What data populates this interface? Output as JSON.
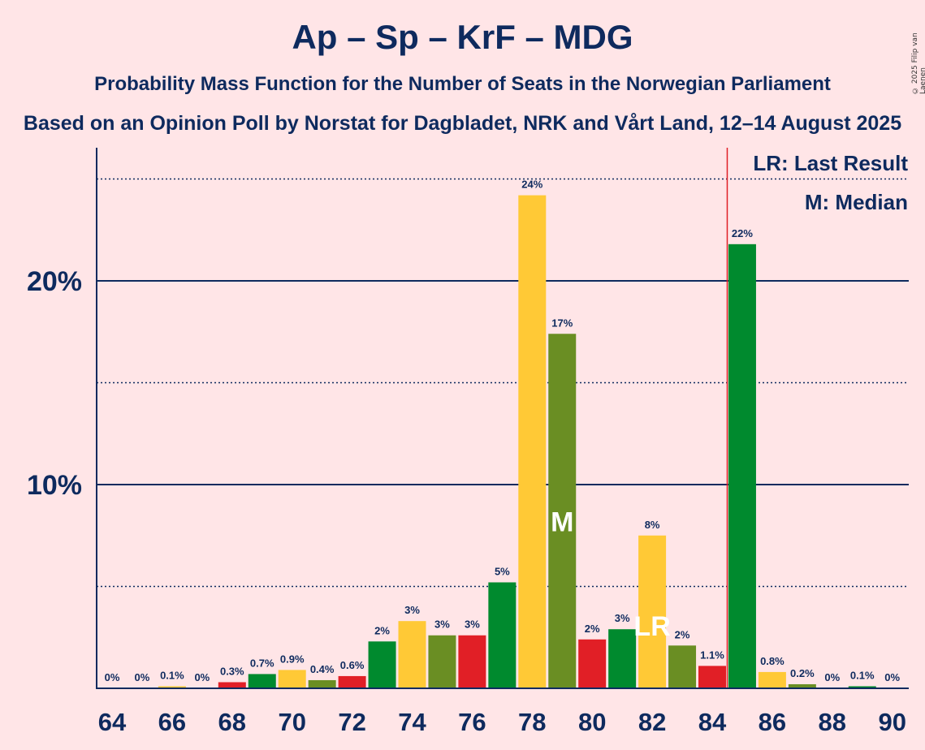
{
  "chart_data": {
    "type": "bar",
    "title": "Ap – Sp – KrF – MDG",
    "subtitle": "Probability Mass Function for the Number of Seats in the Norwegian Parliament",
    "subtitle2": "Based on an Opinion Poll by Norstat for Dagbladet, NRK and Vårt Land, 12–14 August 2025",
    "copyright": "© 2025 Filip van Laenen",
    "ylim": [
      0,
      26.5
    ],
    "y_major_ticks": [
      {
        "value": 10,
        "label": "10%"
      },
      {
        "value": 20,
        "label": "20%"
      }
    ],
    "y_minor_gridlines": [
      5,
      15,
      25
    ],
    "x_tick_labels": [
      64,
      66,
      68,
      70,
      72,
      74,
      76,
      78,
      80,
      82,
      84,
      86,
      88,
      90
    ],
    "bars": [
      {
        "seats": 64,
        "value": 0.0,
        "label": "0%",
        "color": "#FFC936"
      },
      {
        "seats": 65,
        "value": 0.0,
        "label": "0%",
        "color": "#FFC936"
      },
      {
        "seats": 66,
        "value": 0.1,
        "label": "0.1%",
        "color": "#FFC936"
      },
      {
        "seats": 67,
        "value": 0.0,
        "label": "0%",
        "color": "#FFC936"
      },
      {
        "seats": 68,
        "value": 0.3,
        "label": "0.3%",
        "color": "#E11F26"
      },
      {
        "seats": 69,
        "value": 0.7,
        "label": "0.7%",
        "color": "#008A2E"
      },
      {
        "seats": 70,
        "value": 0.9,
        "label": "0.9%",
        "color": "#FFC936"
      },
      {
        "seats": 71,
        "value": 0.4,
        "label": "0.4%",
        "color": "#6A8E23"
      },
      {
        "seats": 72,
        "value": 0.6,
        "label": "0.6%",
        "color": "#E11F26"
      },
      {
        "seats": 73,
        "value": 2.3,
        "label": "2%",
        "color": "#008A2E"
      },
      {
        "seats": 74,
        "value": 3.3,
        "label": "3%",
        "color": "#FFC936"
      },
      {
        "seats": 75,
        "value": 2.6,
        "label": "3%",
        "color": "#6A8E23"
      },
      {
        "seats": 76,
        "value": 2.6,
        "label": "3%",
        "color": "#E11F26"
      },
      {
        "seats": 77,
        "value": 5.2,
        "label": "5%",
        "color": "#008A2E"
      },
      {
        "seats": 78,
        "value": 24.2,
        "label": "24%",
        "color": "#FFC936"
      },
      {
        "seats": 79,
        "value": 17.4,
        "label": "17%",
        "color": "#6A8E23"
      },
      {
        "seats": 80,
        "value": 2.4,
        "label": "2%",
        "color": "#E11F26"
      },
      {
        "seats": 81,
        "value": 2.9,
        "label": "3%",
        "color": "#008A2E"
      },
      {
        "seats": 82,
        "value": 7.5,
        "label": "8%",
        "color": "#FFC936"
      },
      {
        "seats": 83,
        "value": 2.1,
        "label": "2%",
        "color": "#6A8E23"
      },
      {
        "seats": 84,
        "value": 1.1,
        "label": "1.1%",
        "color": "#E11F26"
      },
      {
        "seats": 85,
        "value": 21.8,
        "label": "22%",
        "color": "#008A2E"
      },
      {
        "seats": 86,
        "value": 0.8,
        "label": "0.8%",
        "color": "#FFC936"
      },
      {
        "seats": 87,
        "value": 0.2,
        "label": "0.2%",
        "color": "#6A8E23"
      },
      {
        "seats": 88,
        "value": 0.0,
        "label": "0%",
        "color": "#E11F26"
      },
      {
        "seats": 89,
        "value": 0.1,
        "label": "0.1%",
        "color": "#008A2E"
      },
      {
        "seats": 90,
        "value": 0.0,
        "label": "0%",
        "color": "#FFC936"
      }
    ],
    "majority_line_seats": 84.5,
    "median_seats": 79,
    "median_marker": "M",
    "last_result_seats": 82,
    "last_result_marker": "LR",
    "legend": [
      "LR: Last Result",
      "M: Median"
    ],
    "colors": {
      "text": "#0E2A5E",
      "majority_line": "#E11F26",
      "background": "#FFE5E7"
    }
  }
}
